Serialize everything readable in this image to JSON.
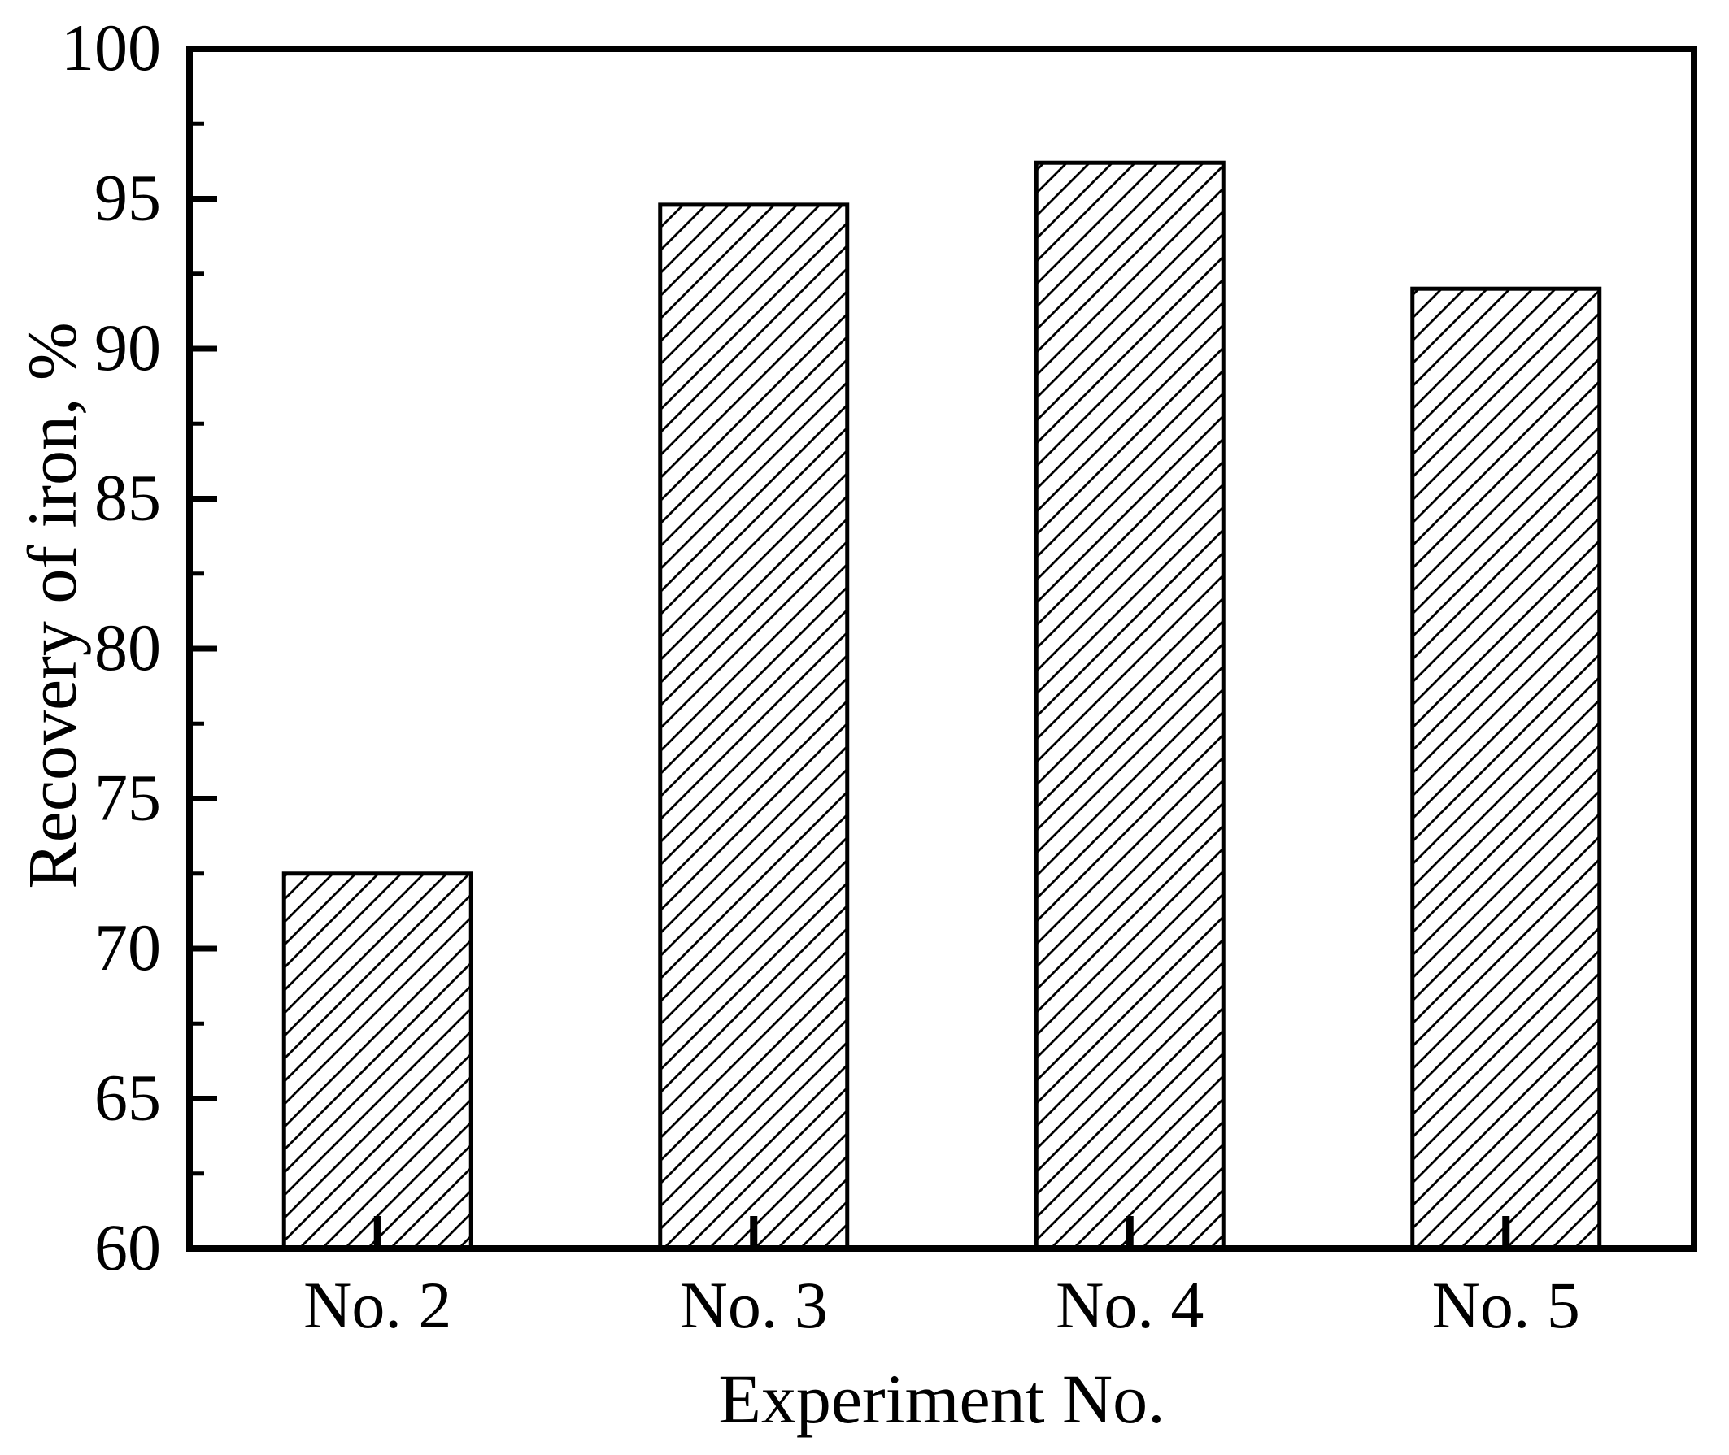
{
  "figure": {
    "background_color": "#ffffff",
    "axis_color": "#000000",
    "text_color": "#000000"
  },
  "chart_data": {
    "type": "bar",
    "categories": [
      "No. 2",
      "No. 3",
      "No. 4",
      "No. 5"
    ],
    "values": [
      72.5,
      94.8,
      96.2,
      92.0
    ],
    "title": "",
    "xlabel": "Experiment No.",
    "ylabel": "Recovery of iron, %",
    "ylim": [
      60,
      100
    ],
    "y_major_step": 5,
    "y_minor_step": 2.5,
    "y_tick_labels": [
      "60",
      "65",
      "70",
      "75",
      "80",
      "85",
      "90",
      "95",
      "100"
    ],
    "grid": false,
    "legend": false,
    "bar_fill": "white-with-black-diagonal-hatch",
    "bar_edge_color": "#000000",
    "tick_direction": "in"
  }
}
